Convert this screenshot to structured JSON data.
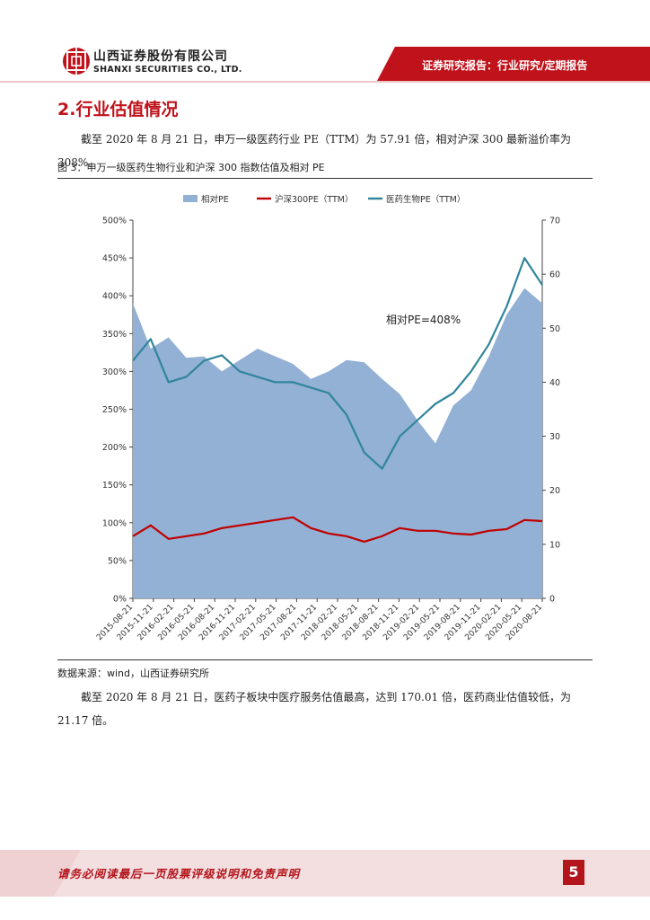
{
  "header": {
    "company_cn": "山西证券股份有限公司",
    "company_en": "SHANXI SECURITIES CO., LTD.",
    "report_type": "证券研究报告：行业研究/定期报告"
  },
  "section": {
    "title": "2.行业估值情况"
  },
  "paragraph1": "截至 2020 年 8 月 21 日，申万一级医药行业 PE（TTM）为 57.91 倍，相对沪深 300 最新溢价率为 308%。",
  "figure": {
    "caption": "图 3：申万一级医药生物行业和沪深 300 指数估值及相对 PE",
    "source": "数据来源：wind，山西证券研究所"
  },
  "paragraph2": "截至 2020 年 8 月 21 日，医药子板块中医疗服务估值最高，达到 170.01 倍，医药商业估值较低，为 21.17 倍。",
  "footer": {
    "disclaimer": "请务必阅读最后一页股票评级说明和免责声明",
    "page_number": "5"
  },
  "colors": {
    "brand_red": "#b3151c",
    "relative_pe": "#93b0d5",
    "hs300_pe": "#c00000",
    "pharma_pe": "#31859c"
  },
  "chart_data": {
    "type": "area",
    "legend": [
      "相对PE",
      "沪深300PE（TTM）",
      "医药生物PE（TTM）"
    ],
    "legend_position": "top",
    "annotation": "相对PE=408%",
    "x_tick_labels": [
      "2015-08-21",
      "2015-11-21",
      "2016-02-21",
      "2016-05-21",
      "2016-08-21",
      "2016-11-21",
      "2017-02-21",
      "2017-05-21",
      "2017-08-21",
      "2017-11-21",
      "2018-02-21",
      "2018-05-21",
      "2018-08-21",
      "2018-11-21",
      "2019-02-21",
      "2019-05-21",
      "2019-08-21",
      "2019-11-21",
      "2020-02-21",
      "2020-05-21",
      "2020-08-21"
    ],
    "y_left_ticks": [
      "0%",
      "50%",
      "100%",
      "150%",
      "200%",
      "250%",
      "300%",
      "350%",
      "400%",
      "450%",
      "500%"
    ],
    "y_left_range": [
      0,
      500
    ],
    "y_right_ticks": [
      "0",
      "10",
      "20",
      "30",
      "40",
      "50",
      "60",
      "70"
    ],
    "y_right_range": [
      0,
      70
    ],
    "grid": false,
    "series": [
      {
        "name": "相对PE",
        "axis": "left",
        "type": "area",
        "values": [
          390,
          330,
          345,
          318,
          320,
          300,
          315,
          330,
          320,
          310,
          290,
          300,
          315,
          312,
          290,
          270,
          235,
          205,
          255,
          275,
          320,
          375,
          410,
          390
        ]
      },
      {
        "name": "沪深300PE（TTM）",
        "axis": "right",
        "type": "line",
        "values": [
          11.5,
          13.5,
          11,
          11.5,
          12,
          13,
          13.5,
          14,
          14.5,
          15,
          13,
          12,
          11.5,
          10.5,
          11.5,
          13,
          12.5,
          12.5,
          12,
          11.8,
          12.5,
          12.8,
          14.5,
          14.3
        ]
      },
      {
        "name": "医药生物PE（TTM）",
        "axis": "right",
        "type": "line",
        "values": [
          44,
          48,
          40,
          41,
          44,
          45,
          42,
          41,
          40,
          40,
          39,
          38,
          34,
          27,
          24,
          30,
          33,
          36,
          38,
          42,
          47,
          54,
          63,
          58
        ]
      }
    ]
  }
}
